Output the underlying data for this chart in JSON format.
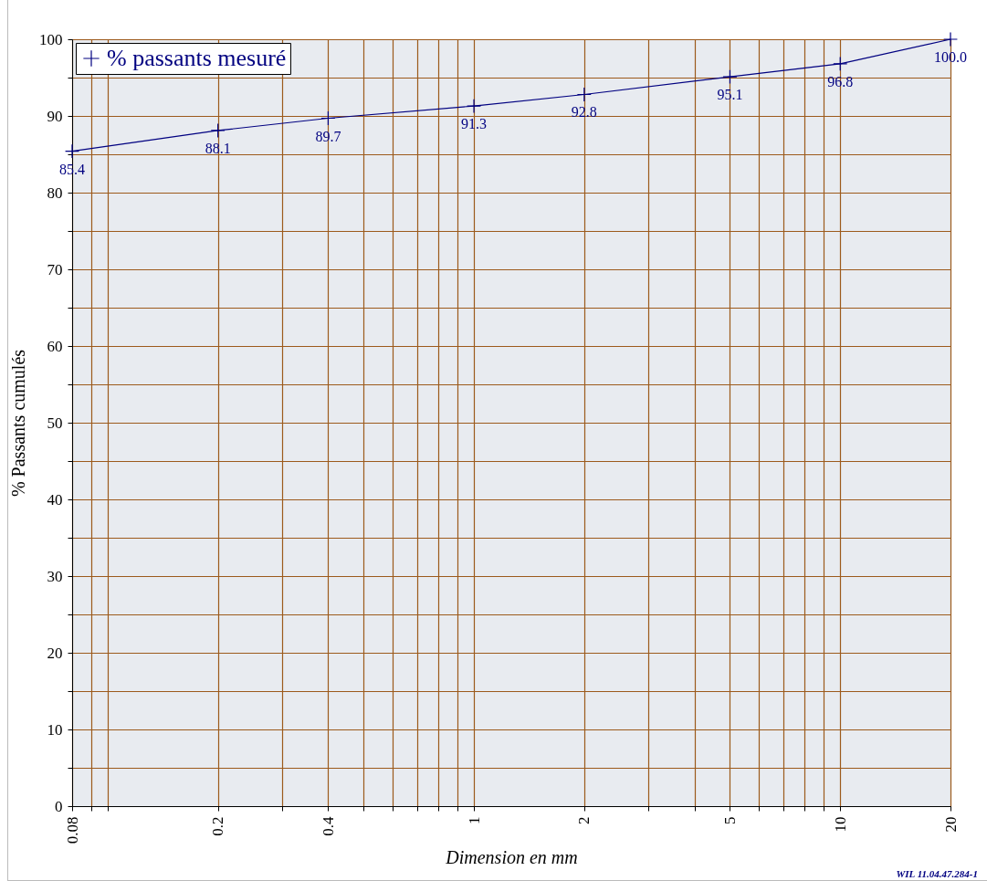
{
  "chart_data": {
    "type": "line",
    "xlabel": "Dimension en mm",
    "ylabel": "% Passants cumulés",
    "x": [
      0.08,
      0.2,
      0.4,
      1,
      2,
      5,
      10,
      20
    ],
    "series": [
      {
        "name": "% passants mesuré",
        "color": "#000080",
        "values": [
          85.4,
          88.1,
          89.7,
          91.3,
          92.8,
          95.1,
          96.8,
          100.0
        ],
        "value_labels": [
          "85.4",
          "88.1",
          "89.7",
          "91.3",
          "92.8",
          "95.1",
          "96.8",
          "100.0"
        ]
      }
    ],
    "log": "x",
    "xlim": [
      0.08,
      20
    ],
    "xticks": [
      0.08,
      {
        "value": 0.09,
        "label": null
      },
      {
        "value": 0.1,
        "label": null
      },
      0.2,
      {
        "value": 0.3,
        "label": null
      },
      0.4,
      {
        "value": 0.5,
        "label": null
      },
      {
        "value": 0.6,
        "label": null
      },
      {
        "value": 0.7,
        "label": null
      },
      {
        "value": 0.8,
        "label": null
      },
      {
        "value": 0.9,
        "label": null
      },
      1,
      2,
      {
        "value": 3,
        "label": null
      },
      {
        "value": 4,
        "label": null
      },
      5,
      {
        "value": 6,
        "label": null
      },
      {
        "value": 7,
        "label": null
      },
      {
        "value": 8,
        "label": null
      },
      {
        "value": 9,
        "label": null
      },
      10,
      20
    ],
    "ylim": [
      0,
      100
    ],
    "yticks": [
      0,
      {
        "value": 5,
        "label": null
      },
      10,
      {
        "value": 15,
        "label": null
      },
      20,
      {
        "value": 25,
        "label": null
      },
      30,
      {
        "value": 35,
        "label": null
      },
      40,
      {
        "value": 45,
        "label": null
      },
      50,
      {
        "value": 55,
        "label": null
      },
      60,
      {
        "value": 65,
        "label": null
      },
      70,
      {
        "value": 75,
        "label": null
      },
      80,
      {
        "value": 85,
        "label": null
      },
      90,
      {
        "value": 95,
        "label": null
      },
      100
    ],
    "grid": true,
    "legend": "top left",
    "marker": "cross",
    "line_style": "solid",
    "annotations": [
      "WIL 11.04.47.284-1"
    ]
  }
}
